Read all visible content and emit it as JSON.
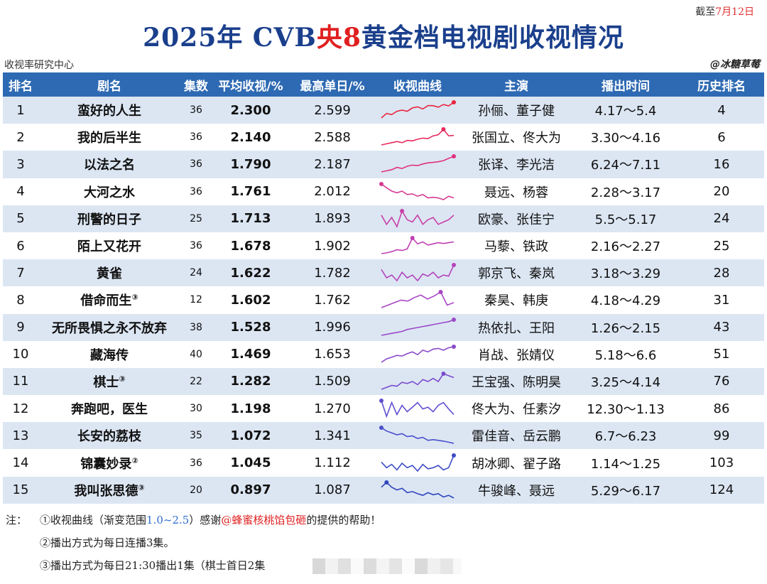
{
  "as_of": {
    "prefix": "截至",
    "date": "7月12日"
  },
  "title": {
    "part1": "2025年 CVB",
    "highlight": "央8",
    "part2": "黄金档电视剧收视情况"
  },
  "source": "收视率研究中心",
  "credit": "@冰糖草莓",
  "headers": [
    "排名",
    "剧名",
    "集数",
    "平均收视/%",
    "最高单日/%",
    "收视曲线",
    "主演",
    "播出时间",
    "历史排名"
  ],
  "rows": [
    {
      "rank": "1",
      "name": "蛮好的人生",
      "note": "",
      "eps": "36",
      "avg": "2.300",
      "max": "2.599",
      "cast": "孙俪、董子健",
      "air": "4.17～5.4",
      "hist": "4",
      "color": "#e8243c",
      "curve": [
        1.9,
        2.1,
        2.05,
        2.2,
        2.25,
        2.2,
        2.35,
        2.4,
        2.3,
        2.45,
        2.45,
        2.38,
        2.5,
        2.44,
        2.6
      ]
    },
    {
      "rank": "2",
      "name": "我的后半生",
      "note": "",
      "eps": "36",
      "avg": "2.140",
      "max": "2.588",
      "cast": "张国立、佟大为",
      "air": "3.30～4.16",
      "hist": "6",
      "color": "#e82a5e",
      "curve": [
        1.9,
        1.95,
        2.0,
        2.05,
        2.0,
        2.1,
        2.08,
        2.15,
        2.2,
        2.18,
        2.3,
        2.35,
        2.59,
        2.3,
        2.32
      ]
    },
    {
      "rank": "3",
      "name": "以法之名",
      "note": "",
      "eps": "36",
      "avg": "1.790",
      "max": "2.187",
      "cast": "张译、李光洁",
      "air": "6.24～7.11",
      "hist": "16",
      "color": "#e0317e",
      "curve": [
        1.5,
        1.55,
        1.6,
        1.7,
        1.65,
        1.75,
        1.8,
        1.78,
        1.85,
        1.9,
        1.92,
        1.95,
        2.0,
        2.1,
        2.19
      ]
    },
    {
      "rank": "4",
      "name": "大河之水",
      "note": "",
      "eps": "36",
      "avg": "1.761",
      "max": "2.012",
      "cast": "聂远、杨蓉",
      "air": "2.28～3.17",
      "hist": "20",
      "color": "#d63a92",
      "curve": [
        2.01,
        1.9,
        1.8,
        1.75,
        1.8,
        1.7,
        1.72,
        1.65,
        1.7,
        1.6,
        1.62,
        1.6,
        1.55,
        1.65,
        1.6
      ]
    },
    {
      "rank": "5",
      "name": "刑警的日子",
      "note": "",
      "eps": "25",
      "avg": "1.713",
      "max": "1.893",
      "cast": "欧豪、张佳宁",
      "air": "5.5～5.17",
      "hist": "24",
      "color": "#c83fa6",
      "curve": [
        1.8,
        1.6,
        1.75,
        1.55,
        1.89,
        1.7,
        1.65,
        1.8,
        1.6,
        1.7,
        1.75,
        1.6,
        1.65,
        1.7,
        1.8
      ]
    },
    {
      "rank": "6",
      "name": "陌上又花开",
      "note": "",
      "eps": "36",
      "avg": "1.678",
      "max": "1.902",
      "cast": "马藜、铁政",
      "air": "2.16～2.27",
      "hist": "25",
      "color": "#c040b2",
      "curve": [
        1.5,
        1.52,
        1.55,
        1.6,
        1.58,
        1.62,
        1.9,
        1.75,
        1.8,
        1.72,
        1.75,
        1.78,
        1.76,
        1.78,
        1.8
      ]
    },
    {
      "rank": "7",
      "name": "黄雀",
      "note": "",
      "eps": "24",
      "avg": "1.622",
      "max": "1.782",
      "cast": "郭京飞、秦岚",
      "air": "3.18～3.29",
      "hist": "28",
      "color": "#b444bc",
      "curve": [
        1.7,
        1.55,
        1.6,
        1.5,
        1.65,
        1.55,
        1.6,
        1.5,
        1.62,
        1.58,
        1.65,
        1.55,
        1.6,
        1.58,
        1.78
      ]
    },
    {
      "rank": "8",
      "name": "借命而生",
      "note": "③",
      "eps": "12",
      "avg": "1.602",
      "max": "1.762",
      "cast": "秦昊、韩庚",
      "air": "4.18～4.29",
      "hist": "31",
      "color": "#a846c4",
      "curve": [
        1.45,
        1.5,
        1.55,
        1.6,
        1.58,
        1.65,
        1.7,
        1.62,
        1.68,
        1.76,
        1.5,
        1.55
      ]
    },
    {
      "rank": "9",
      "name": "无所畏惧之永不放弃",
      "note": "",
      "eps": "38",
      "avg": "1.528",
      "max": "1.996",
      "cast": "热依扎、王阳",
      "air": "1.26～2.15",
      "hist": "43",
      "color": "#9a48c8",
      "curve": [
        1.2,
        1.25,
        1.3,
        1.35,
        1.4,
        1.5,
        1.55,
        1.6,
        1.65,
        1.7,
        1.75,
        1.8,
        1.85,
        1.9,
        2.0
      ]
    },
    {
      "rank": "10",
      "name": "藏海传",
      "note": "",
      "eps": "40",
      "avg": "1.469",
      "max": "1.653",
      "cast": "肖战、张婧仪",
      "air": "5.18～6.6",
      "hist": "51",
      "color": "#8a4acb",
      "curve": [
        1.2,
        1.3,
        1.35,
        1.4,
        1.38,
        1.45,
        1.5,
        1.42,
        1.55,
        1.5,
        1.58,
        1.6,
        1.55,
        1.62,
        1.65
      ]
    },
    {
      "rank": "11",
      "name": "棋士",
      "note": "③",
      "eps": "22",
      "avg": "1.282",
      "max": "1.509",
      "cast": "王宝强、陈明昊",
      "air": "3.25～4.14",
      "hist": "76",
      "color": "#7a4ccd",
      "curve": [
        1.1,
        1.15,
        1.2,
        1.18,
        1.28,
        1.25,
        1.3,
        1.22,
        1.35,
        1.3,
        1.38,
        1.3,
        1.5,
        1.45,
        1.4
      ]
    },
    {
      "rank": "12",
      "name": "奔跑吧，医生",
      "note": "",
      "eps": "30",
      "avg": "1.198",
      "max": "1.270",
      "cast": "佟大为、任素汐",
      "air": "12.30～1.13",
      "hist": "86",
      "color": "#5d4fcf",
      "curve": [
        1.27,
        1.1,
        1.25,
        1.12,
        1.22,
        1.15,
        1.2,
        1.25,
        1.18,
        1.2,
        1.15,
        1.22,
        1.25,
        1.18,
        1.12
      ]
    },
    {
      "rank": "13",
      "name": "长安的荔枝",
      "note": "",
      "eps": "35",
      "avg": "1.072",
      "max": "1.341",
      "cast": "雷佳音、岳云鹏",
      "air": "6.7～6.23",
      "hist": "99",
      "color": "#4a4fcc",
      "curve": [
        1.34,
        1.25,
        1.2,
        1.15,
        1.18,
        1.1,
        1.12,
        1.05,
        1.08,
        1.0,
        1.02,
        1.0,
        0.98,
        0.95,
        0.92
      ]
    },
    {
      "rank": "14",
      "name": "锦囊妙录",
      "note": "②",
      "eps": "36",
      "avg": "1.045",
      "max": "1.112",
      "cast": "胡冰卿、翟子路",
      "air": "1.14～1.25",
      "hist": "103",
      "color": "#3d4cc6",
      "curve": [
        1.05,
        1.0,
        1.03,
        0.98,
        1.04,
        1.0,
        1.02,
        0.97,
        1.03,
        0.99,
        1.0,
        1.02,
        0.98,
        1.0,
        1.11
      ]
    },
    {
      "rank": "15",
      "name": "我叫张思德",
      "note": "③",
      "eps": "20",
      "avg": "0.897",
      "max": "1.087",
      "cast": "牛骏峰、聂远",
      "air": "5.29～6.17",
      "hist": "124",
      "color": "#2f45bd",
      "curve": [
        1.0,
        1.09,
        1.0,
        0.95,
        0.98,
        0.9,
        0.92,
        0.88,
        0.85,
        0.9,
        0.86,
        0.88,
        0.82,
        0.85,
        0.8
      ]
    }
  ],
  "notes": {
    "label": "注：",
    "n1_pre": "①收视曲线（渐变范围",
    "n1_range": "1.0~2.5",
    "n1_mid": "）感谢",
    "n1_thanks": "@蜂蜜核桃馅包砸",
    "n1_post": "的提供的帮助！",
    "n2": "②播出方式为每日连播3集。",
    "n3": "③播出方式为每日21:30播出1集（棋士首日2集"
  }
}
